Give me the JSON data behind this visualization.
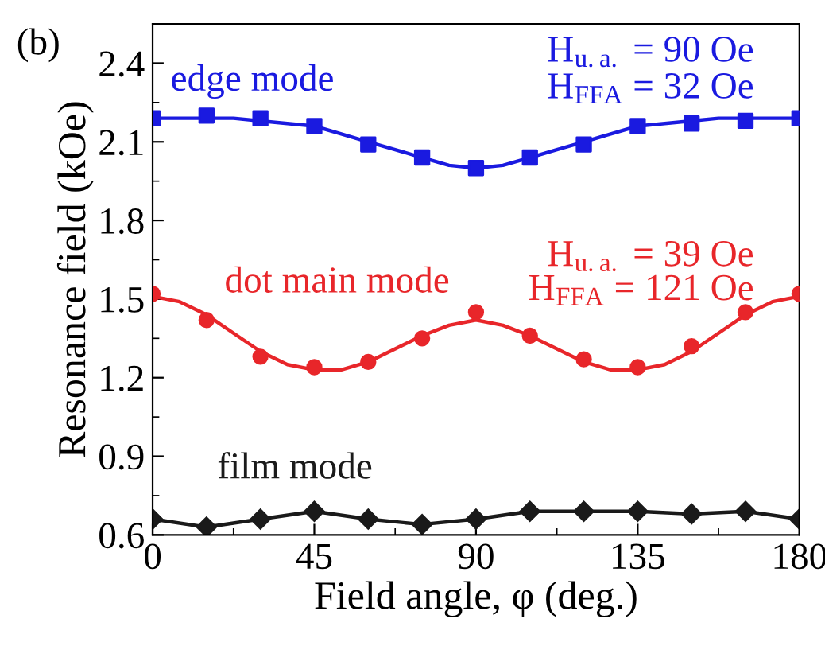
{
  "chart_data": {
    "type": "line",
    "xlabel": "Field angle, φ (deg.)",
    "ylabel": "Resonance field (kOe)",
    "xlim": [
      0,
      180
    ],
    "xticks": [
      0,
      45,
      90,
      135,
      180
    ],
    "ylim": [
      0.6,
      2.55
    ],
    "yticks": [
      0.6,
      0.9,
      1.2,
      1.5,
      1.8,
      2.1,
      2.4
    ],
    "grid": false,
    "legend": false,
    "annotations": [
      "(b)",
      "H$_{u.a.}$ = 90 Oe",
      "H$_{FFA}$ = 32 Oe",
      "H$_{u.a.}$ = 39 Oe",
      "H$_{FFA}$ = 121 Oe"
    ],
    "series": [
      {
        "name": "edge mode",
        "type": "scatter",
        "marker": "square",
        "color": "#1a1ae0",
        "x": [
          0,
          15,
          30,
          45,
          60,
          75,
          90,
          105,
          120,
          135,
          150,
          165,
          180
        ],
        "values": [
          2.19,
          2.2,
          2.19,
          2.16,
          2.09,
          2.04,
          2.0,
          2.04,
          2.09,
          2.16,
          2.17,
          2.18,
          2.19
        ]
      },
      {
        "marker": "none",
        "color": "#1a1ae0",
        "x": [
          0,
          7.5,
          15,
          22.5,
          30,
          37.5,
          45,
          52.5,
          60,
          67.5,
          75,
          82.5,
          90,
          97.5,
          105,
          112.5,
          120,
          127.5,
          135,
          142.5,
          150,
          157.5,
          165,
          172.5,
          180
        ],
        "values": [
          2.19,
          2.19,
          2.19,
          2.19,
          2.18,
          2.17,
          2.16,
          2.13,
          2.1,
          2.07,
          2.04,
          2.01,
          2.0,
          2.01,
          2.04,
          2.07,
          2.1,
          2.13,
          2.16,
          2.17,
          2.18,
          2.19,
          2.19,
          2.19,
          2.19
        ]
      },
      {
        "name": "dot main mode",
        "type": "scatter",
        "marker": "circle",
        "color": "#e8262a",
        "x": [
          0,
          15,
          30,
          45,
          60,
          75,
          90,
          105,
          120,
          135,
          150,
          165,
          180
        ],
        "values": [
          1.52,
          1.42,
          1.28,
          1.24,
          1.26,
          1.35,
          1.45,
          1.36,
          1.27,
          1.24,
          1.32,
          1.45,
          1.52
        ]
      },
      {
        "marker": "none",
        "color": "#e8262a",
        "x": [
          0,
          7.5,
          15,
          22.5,
          30,
          37.5,
          45,
          52.5,
          60,
          67.5,
          75,
          82.5,
          90,
          97.5,
          105,
          112.5,
          120,
          127.5,
          135,
          142.5,
          150,
          157.5,
          165,
          172.5,
          180
        ],
        "values": [
          1.51,
          1.49,
          1.44,
          1.37,
          1.3,
          1.25,
          1.23,
          1.23,
          1.26,
          1.31,
          1.36,
          1.4,
          1.42,
          1.4,
          1.36,
          1.31,
          1.26,
          1.23,
          1.23,
          1.25,
          1.3,
          1.37,
          1.44,
          1.49,
          1.51
        ]
      },
      {
        "name": "film mode",
        "marker": "diamond",
        "color": "#1a1a1a",
        "x": [
          0,
          15,
          30,
          45,
          60,
          75,
          90,
          105,
          120,
          135,
          150,
          165,
          180
        ],
        "values": [
          0.66,
          0.63,
          0.66,
          0.69,
          0.66,
          0.64,
          0.66,
          0.69,
          0.69,
          0.69,
          0.68,
          0.69,
          0.66
        ]
      }
    ]
  }
}
